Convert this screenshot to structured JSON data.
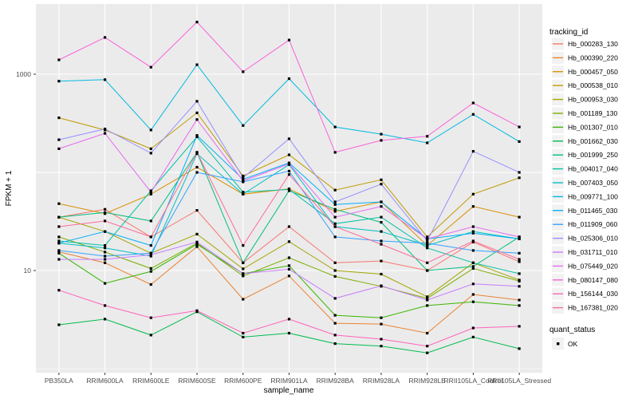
{
  "chart_data": {
    "type": "line",
    "title": "",
    "xlabel": "sample_name",
    "ylabel": "FPKM + 1",
    "y_scale": "log10",
    "ylim": [
      0.9,
      5200
    ],
    "y_tick_labels": [
      {
        "label": "1000",
        "value": 1000
      },
      {
        "label": "10",
        "value": 10
      }
    ],
    "grid": {
      "major_values": [
        10,
        100,
        1000
      ],
      "minor_values": [
        1
      ],
      "color": "#ffffff"
    },
    "panel_bg": "#ebebeb",
    "point_color": "#000000",
    "legend_key_bg": "#f2f2f2",
    "categories": [
      "PB350LA",
      "RRIM600LA",
      "RRIM600LE",
      "RRIM600SE",
      "RRIM600PE",
      "RRIM901LA",
      "RRIM928BA",
      "RRIM928LA",
      "RRIM928LE",
      "RRII105LA_Control",
      "RRII105LA_Stressed"
    ],
    "color_legend_title": "tracking_id",
    "shape_legend_title": "quant_status",
    "shape_legend_label": "OK",
    "series": [
      {
        "name": "Hb_000283_130",
        "color": "#F8766D",
        "values": [
          35,
          42,
          22,
          41,
          12,
          28,
          12,
          12.5,
          10,
          19.5,
          12.3
        ]
      },
      {
        "name": "Hb_000390_220",
        "color": "#EA8331",
        "values": [
          15.5,
          12,
          7.2,
          17.5,
          5.1,
          8.8,
          2.9,
          2.85,
          2.3,
          5.7,
          5.0
        ]
      },
      {
        "name": "Hb_000457_050",
        "color": "#D89000",
        "values": [
          48,
          38,
          60,
          113,
          60,
          68,
          40,
          50,
          18,
          45,
          35
        ]
      },
      {
        "name": "Hb_000538_010",
        "color": "#C09B00",
        "values": [
          360,
          270,
          174,
          404,
          92,
          151,
          66,
          84,
          22,
          60,
          88
        ]
      },
      {
        "name": "Hb_000953_030",
        "color": "#A3A500",
        "values": [
          35,
          25,
          15,
          23.5,
          10.4,
          19.7,
          10,
          9.2,
          5.4,
          12,
          8.0
        ]
      },
      {
        "name": "Hb_001189_130",
        "color": "#7CAE00",
        "values": [
          22,
          15.4,
          10.5,
          19,
          8.8,
          13.5,
          8.7,
          6.9,
          5.2,
          10.5,
          7.8
        ]
      },
      {
        "name": "Hb_001307_010",
        "color": "#39B600",
        "values": [
          15,
          7.4,
          9.8,
          18.5,
          9.3,
          11.2,
          3.5,
          3.3,
          4.4,
          4.8,
          4.4
        ]
      },
      {
        "name": "Hb_001662_030",
        "color": "#00BB4E",
        "values": [
          2.8,
          3.2,
          2.2,
          3.8,
          2.1,
          2.3,
          1.8,
          1.7,
          1.45,
          2.1,
          1.6
        ]
      },
      {
        "name": "Hb_001999_250",
        "color": "#00BF7D",
        "values": [
          35,
          39,
          32,
          160,
          12,
          65,
          42,
          31,
          10,
          11,
          22
        ]
      },
      {
        "name": "Hb_004017_040",
        "color": "#00C1A3",
        "values": [
          20,
          18,
          65,
          230,
          63,
          67,
          30,
          35,
          17,
          12,
          9.3
        ]
      },
      {
        "name": "Hb_007403_050",
        "color": "#00BFC4",
        "values": [
          19,
          17,
          14,
          155,
          60,
          120,
          28,
          25,
          18,
          25,
          21
        ]
      },
      {
        "name": "Hb_009771_100",
        "color": "#00BAE0",
        "values": [
          850,
          880,
          270,
          1250,
          300,
          900,
          290,
          245,
          200,
          390,
          206
        ]
      },
      {
        "name": "Hb_011465_030",
        "color": "#00B0F6",
        "values": [
          19,
          25,
          18,
          238,
          85,
          125,
          47,
          50,
          21,
          24,
          21
        ]
      },
      {
        "name": "Hb_011909_060",
        "color": "#35A2FF",
        "values": [
          16,
          14,
          15,
          100,
          80,
          103,
          22,
          20,
          19,
          16,
          15
        ]
      },
      {
        "name": "Hb_025306_010",
        "color": "#9590FF",
        "values": [
          215,
          277,
          157,
          530,
          88,
          220,
          50,
          76,
          20,
          164,
          100
        ]
      },
      {
        "name": "Hb_031711_010",
        "color": "#C77CFF",
        "values": [
          13,
          13,
          14.5,
          19.5,
          9.3,
          10.3,
          5.2,
          7.0,
          5.0,
          7.3,
          6.9
        ]
      },
      {
        "name": "Hb_075449_020",
        "color": "#E76BF3",
        "values": [
          174,
          250,
          63,
          345,
          82,
          122,
          35,
          45,
          21,
          28,
          22
        ]
      },
      {
        "name": "Hb_080147_080",
        "color": "#FA62DB",
        "values": [
          1400,
          2370,
          1180,
          3400,
          1060,
          2230,
          160,
          212,
          233,
          510,
          290
        ]
      },
      {
        "name": "Hb_156144_030",
        "color": "#FF62BC",
        "values": [
          6.3,
          4.4,
          3.3,
          3.9,
          2.3,
          3.2,
          2.2,
          2.0,
          1.7,
          2.6,
          2.7
        ]
      },
      {
        "name": "Hb_167381_020",
        "color": "#FF6A98",
        "values": [
          28,
          32,
          22,
          160,
          18,
          95,
          28,
          18.5,
          12,
          20,
          13
        ]
      }
    ]
  }
}
